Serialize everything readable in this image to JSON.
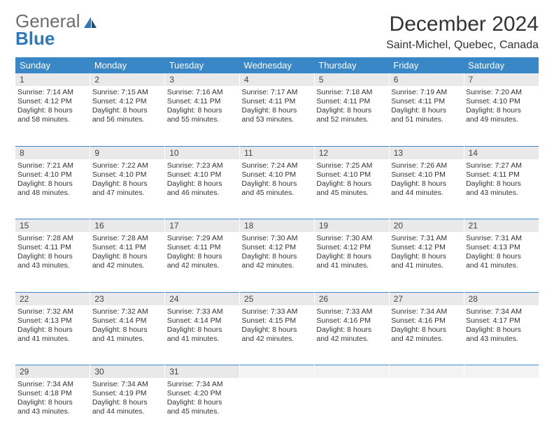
{
  "logo": {
    "word1": "General",
    "word2": "Blue"
  },
  "title": "December 2024",
  "location": "Saint-Michel, Quebec, Canada",
  "colors": {
    "header_bg": "#3a87c8",
    "header_text": "#ffffff",
    "daynum_bg": "#e9e9e9",
    "border": "#3a87c8",
    "logo_gray": "#6d6d6d",
    "logo_blue": "#2d78bc",
    "page_bg": "#ffffff"
  },
  "day_headers": [
    "Sunday",
    "Monday",
    "Tuesday",
    "Wednesday",
    "Thursday",
    "Friday",
    "Saturday"
  ],
  "weeks": [
    [
      {
        "n": "1",
        "sr": "7:14 AM",
        "ss": "4:12 PM",
        "dl1": "Daylight: 8 hours",
        "dl2": "and 58 minutes."
      },
      {
        "n": "2",
        "sr": "7:15 AM",
        "ss": "4:12 PM",
        "dl1": "Daylight: 8 hours",
        "dl2": "and 56 minutes."
      },
      {
        "n": "3",
        "sr": "7:16 AM",
        "ss": "4:11 PM",
        "dl1": "Daylight: 8 hours",
        "dl2": "and 55 minutes."
      },
      {
        "n": "4",
        "sr": "7:17 AM",
        "ss": "4:11 PM",
        "dl1": "Daylight: 8 hours",
        "dl2": "and 53 minutes."
      },
      {
        "n": "5",
        "sr": "7:18 AM",
        "ss": "4:11 PM",
        "dl1": "Daylight: 8 hours",
        "dl2": "and 52 minutes."
      },
      {
        "n": "6",
        "sr": "7:19 AM",
        "ss": "4:11 PM",
        "dl1": "Daylight: 8 hours",
        "dl2": "and 51 minutes."
      },
      {
        "n": "7",
        "sr": "7:20 AM",
        "ss": "4:10 PM",
        "dl1": "Daylight: 8 hours",
        "dl2": "and 49 minutes."
      }
    ],
    [
      {
        "n": "8",
        "sr": "7:21 AM",
        "ss": "4:10 PM",
        "dl1": "Daylight: 8 hours",
        "dl2": "and 48 minutes."
      },
      {
        "n": "9",
        "sr": "7:22 AM",
        "ss": "4:10 PM",
        "dl1": "Daylight: 8 hours",
        "dl2": "and 47 minutes."
      },
      {
        "n": "10",
        "sr": "7:23 AM",
        "ss": "4:10 PM",
        "dl1": "Daylight: 8 hours",
        "dl2": "and 46 minutes."
      },
      {
        "n": "11",
        "sr": "7:24 AM",
        "ss": "4:10 PM",
        "dl1": "Daylight: 8 hours",
        "dl2": "and 45 minutes."
      },
      {
        "n": "12",
        "sr": "7:25 AM",
        "ss": "4:10 PM",
        "dl1": "Daylight: 8 hours",
        "dl2": "and 45 minutes."
      },
      {
        "n": "13",
        "sr": "7:26 AM",
        "ss": "4:10 PM",
        "dl1": "Daylight: 8 hours",
        "dl2": "and 44 minutes."
      },
      {
        "n": "14",
        "sr": "7:27 AM",
        "ss": "4:11 PM",
        "dl1": "Daylight: 8 hours",
        "dl2": "and 43 minutes."
      }
    ],
    [
      {
        "n": "15",
        "sr": "7:28 AM",
        "ss": "4:11 PM",
        "dl1": "Daylight: 8 hours",
        "dl2": "and 43 minutes."
      },
      {
        "n": "16",
        "sr": "7:28 AM",
        "ss": "4:11 PM",
        "dl1": "Daylight: 8 hours",
        "dl2": "and 42 minutes."
      },
      {
        "n": "17",
        "sr": "7:29 AM",
        "ss": "4:11 PM",
        "dl1": "Daylight: 8 hours",
        "dl2": "and 42 minutes."
      },
      {
        "n": "18",
        "sr": "7:30 AM",
        "ss": "4:12 PM",
        "dl1": "Daylight: 8 hours",
        "dl2": "and 42 minutes."
      },
      {
        "n": "19",
        "sr": "7:30 AM",
        "ss": "4:12 PM",
        "dl1": "Daylight: 8 hours",
        "dl2": "and 41 minutes."
      },
      {
        "n": "20",
        "sr": "7:31 AM",
        "ss": "4:12 PM",
        "dl1": "Daylight: 8 hours",
        "dl2": "and 41 minutes."
      },
      {
        "n": "21",
        "sr": "7:31 AM",
        "ss": "4:13 PM",
        "dl1": "Daylight: 8 hours",
        "dl2": "and 41 minutes."
      }
    ],
    [
      {
        "n": "22",
        "sr": "7:32 AM",
        "ss": "4:13 PM",
        "dl1": "Daylight: 8 hours",
        "dl2": "and 41 minutes."
      },
      {
        "n": "23",
        "sr": "7:32 AM",
        "ss": "4:14 PM",
        "dl1": "Daylight: 8 hours",
        "dl2": "and 41 minutes."
      },
      {
        "n": "24",
        "sr": "7:33 AM",
        "ss": "4:14 PM",
        "dl1": "Daylight: 8 hours",
        "dl2": "and 41 minutes."
      },
      {
        "n": "25",
        "sr": "7:33 AM",
        "ss": "4:15 PM",
        "dl1": "Daylight: 8 hours",
        "dl2": "and 42 minutes."
      },
      {
        "n": "26",
        "sr": "7:33 AM",
        "ss": "4:16 PM",
        "dl1": "Daylight: 8 hours",
        "dl2": "and 42 minutes."
      },
      {
        "n": "27",
        "sr": "7:34 AM",
        "ss": "4:16 PM",
        "dl1": "Daylight: 8 hours",
        "dl2": "and 42 minutes."
      },
      {
        "n": "28",
        "sr": "7:34 AM",
        "ss": "4:17 PM",
        "dl1": "Daylight: 8 hours",
        "dl2": "and 43 minutes."
      }
    ],
    [
      {
        "n": "29",
        "sr": "7:34 AM",
        "ss": "4:18 PM",
        "dl1": "Daylight: 8 hours",
        "dl2": "and 43 minutes."
      },
      {
        "n": "30",
        "sr": "7:34 AM",
        "ss": "4:19 PM",
        "dl1": "Daylight: 8 hours",
        "dl2": "and 44 minutes."
      },
      {
        "n": "31",
        "sr": "7:34 AM",
        "ss": "4:20 PM",
        "dl1": "Daylight: 8 hours",
        "dl2": "and 45 minutes."
      },
      null,
      null,
      null,
      null
    ]
  ],
  "labels": {
    "sunrise": "Sunrise: ",
    "sunset": "Sunset: "
  }
}
